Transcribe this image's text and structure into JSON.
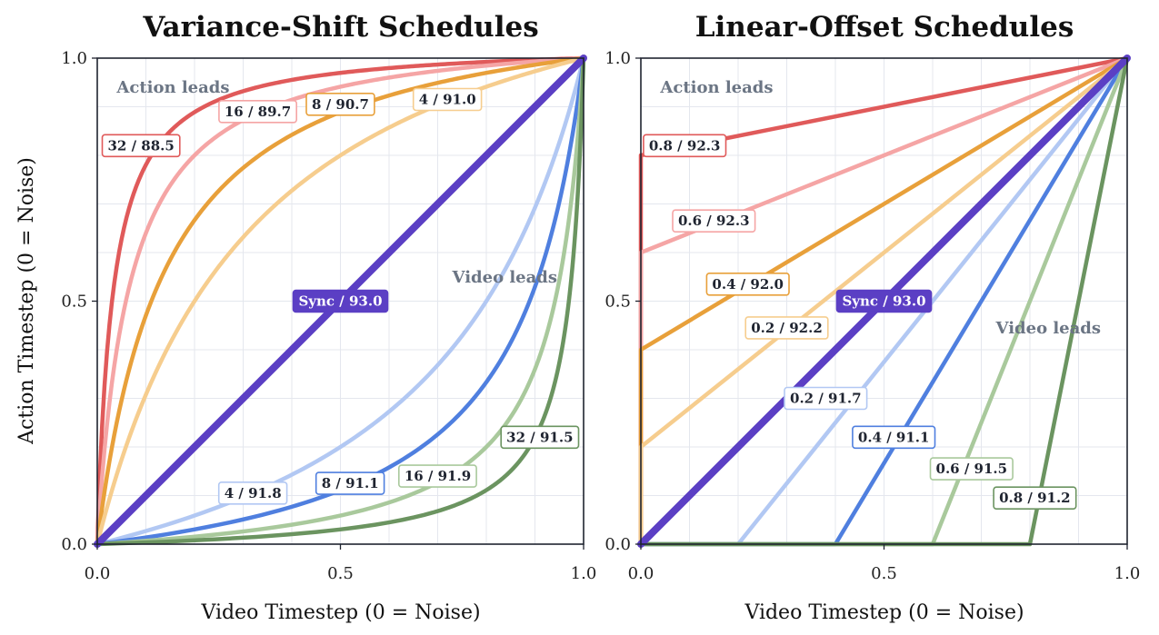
{
  "figure": {
    "shared_ylabel": "Action Timestep (0 = Noise)"
  },
  "chart_data": [
    {
      "type": "line",
      "title": "Variance-Shift Schedules",
      "xlabel": "Video Timestep (0 = Noise)",
      "ylabel": "Action Timestep (0 = Noise)",
      "xlim": [
        0,
        1
      ],
      "ylim": [
        0,
        1
      ],
      "xticks": [
        "0.0",
        "0.5",
        "1.0"
      ],
      "yticks": [
        "0.0",
        "0.5",
        "1.0"
      ],
      "grid": true,
      "region_labels": [
        {
          "text": "Action leads",
          "x": 0.04,
          "y": 0.94
        },
        {
          "text": "Video leads",
          "x": 0.73,
          "y": 0.55
        }
      ],
      "series": [
        {
          "shift": 32,
          "kind": "action",
          "color": "#e05a5a",
          "width": 4.5,
          "label": "32 / 88.5",
          "label_at": [
            0.09,
            0.82
          ]
        },
        {
          "shift": 16,
          "kind": "action",
          "color": "#f5a5a5",
          "width": 4.5,
          "label": "16 / 89.7",
          "label_at": [
            0.33,
            0.89
          ]
        },
        {
          "shift": 8,
          "kind": "action",
          "color": "#e8a03a",
          "width": 4.5,
          "label": "8 / 90.7",
          "label_at": [
            0.5,
            0.905
          ]
        },
        {
          "shift": 4,
          "kind": "action",
          "color": "#f6cd8e",
          "width": 4.5,
          "label": "4 / 91.0",
          "label_at": [
            0.72,
            0.915
          ]
        },
        {
          "shift": 1,
          "kind": "sync",
          "color": "#5b3fc4",
          "width": 8,
          "label": "Sync / 93.0",
          "label_at": [
            0.5,
            0.5
          ]
        },
        {
          "shift": 4,
          "kind": "video",
          "color": "#b2c8f3",
          "width": 4.5,
          "label": "4 / 91.8",
          "label_at": [
            0.32,
            0.105
          ]
        },
        {
          "shift": 8,
          "kind": "video",
          "color": "#4f7fdf",
          "width": 4.5,
          "label": "8 / 91.1",
          "label_at": [
            0.52,
            0.125
          ]
        },
        {
          "shift": 16,
          "kind": "video",
          "color": "#a9c99c",
          "width": 4.5,
          "label": "16 / 91.9",
          "label_at": [
            0.7,
            0.14
          ]
        },
        {
          "shift": 32,
          "kind": "video",
          "color": "#6b9460",
          "width": 4.5,
          "label": "32 / 91.5",
          "label_at": [
            0.91,
            0.22
          ]
        }
      ]
    },
    {
      "type": "line",
      "title": "Linear-Offset Schedules",
      "xlabel": "Video Timestep (0 = Noise)",
      "ylabel": "",
      "xlim": [
        0,
        1
      ],
      "ylim": [
        0,
        1
      ],
      "xticks": [
        "0.0",
        "0.5",
        "1.0"
      ],
      "yticks": [
        "0.0",
        "0.5",
        "1.0"
      ],
      "grid": true,
      "region_labels": [
        {
          "text": "Action leads",
          "x": 0.04,
          "y": 0.94
        },
        {
          "text": "Video leads",
          "x": 0.73,
          "y": 0.445
        }
      ],
      "series": [
        {
          "offset": 0.8,
          "kind": "action",
          "color": "#e05a5a",
          "width": 4.5,
          "label": "0.8 / 92.3",
          "label_at": [
            0.09,
            0.82
          ]
        },
        {
          "offset": 0.6,
          "kind": "action",
          "color": "#f5a5a5",
          "width": 4.5,
          "label": "0.6 / 92.3",
          "label_at": [
            0.15,
            0.665
          ]
        },
        {
          "offset": 0.4,
          "kind": "action",
          "color": "#e8a03a",
          "width": 4.5,
          "label": "0.4 / 92.0",
          "label_at": [
            0.22,
            0.535
          ]
        },
        {
          "offset": 0.2,
          "kind": "action",
          "color": "#f6cd8e",
          "width": 4.5,
          "label": "0.2 / 92.2",
          "label_at": [
            0.3,
            0.445
          ]
        },
        {
          "offset": 0.0,
          "kind": "sync",
          "color": "#5b3fc4",
          "width": 8,
          "label": "Sync / 93.0",
          "label_at": [
            0.5,
            0.5
          ]
        },
        {
          "offset": 0.2,
          "kind": "video",
          "color": "#b2c8f3",
          "width": 4.5,
          "label": "0.2 / 91.7",
          "label_at": [
            0.38,
            0.3
          ]
        },
        {
          "offset": 0.4,
          "kind": "video",
          "color": "#4f7fdf",
          "width": 4.5,
          "label": "0.4 / 91.1",
          "label_at": [
            0.52,
            0.22
          ]
        },
        {
          "offset": 0.6,
          "kind": "video",
          "color": "#a9c99c",
          "width": 4.5,
          "label": "0.6 / 91.5",
          "label_at": [
            0.68,
            0.155
          ]
        },
        {
          "offset": 0.8,
          "kind": "video",
          "color": "#6b9460",
          "width": 4.5,
          "label": "0.8 / 91.2",
          "label_at": [
            0.81,
            0.095
          ]
        }
      ]
    }
  ]
}
